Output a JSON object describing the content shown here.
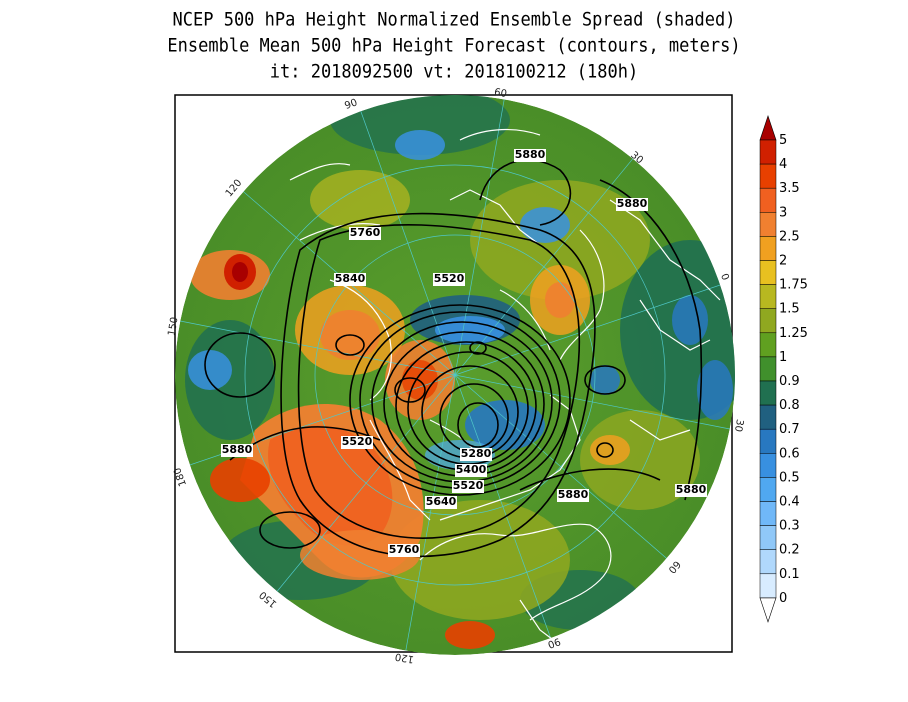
{
  "title": {
    "line1": "NCEP 500 hPa Height Normalized Ensemble Spread (shaded)",
    "line2": "Ensemble Mean 500 hPa Height Forecast (contours, meters)",
    "line3": "it: 2018092500     vt: 2018100212 (180h)"
  },
  "longitude_labels": [
    "60",
    "30",
    "0",
    "30",
    "60",
    "90",
    "120",
    "150",
    "180",
    "150",
    "120",
    "90"
  ],
  "contour_labels": [
    "5880",
    "5880",
    "5760",
    "5840",
    "5520",
    "5520",
    "5880",
    "5280",
    "5400",
    "5520",
    "5640",
    "5880",
    "5880",
    "5760"
  ],
  "colorbar": {
    "levels": [
      "5",
      "4",
      "3.5",
      "3",
      "2.5",
      "2",
      "1.75",
      "1.5",
      "1.25",
      "1",
      "0.9",
      "0.8",
      "0.7",
      "0.6",
      "0.5",
      "0.4",
      "0.3",
      "0.2",
      "0.1",
      "0"
    ],
    "colors": [
      "#a80000",
      "#d02000",
      "#e84000",
      "#f06020",
      "#f08030",
      "#f0a020",
      "#e8c020",
      "#b8b820",
      "#90a820",
      "#60a020",
      "#40902c",
      "#207050",
      "#206080",
      "#2878c0",
      "#3890e0",
      "#50a8f0",
      "#70b8f8",
      "#90c8f8",
      "#b0d8fc",
      "#d8ecff"
    ]
  }
}
